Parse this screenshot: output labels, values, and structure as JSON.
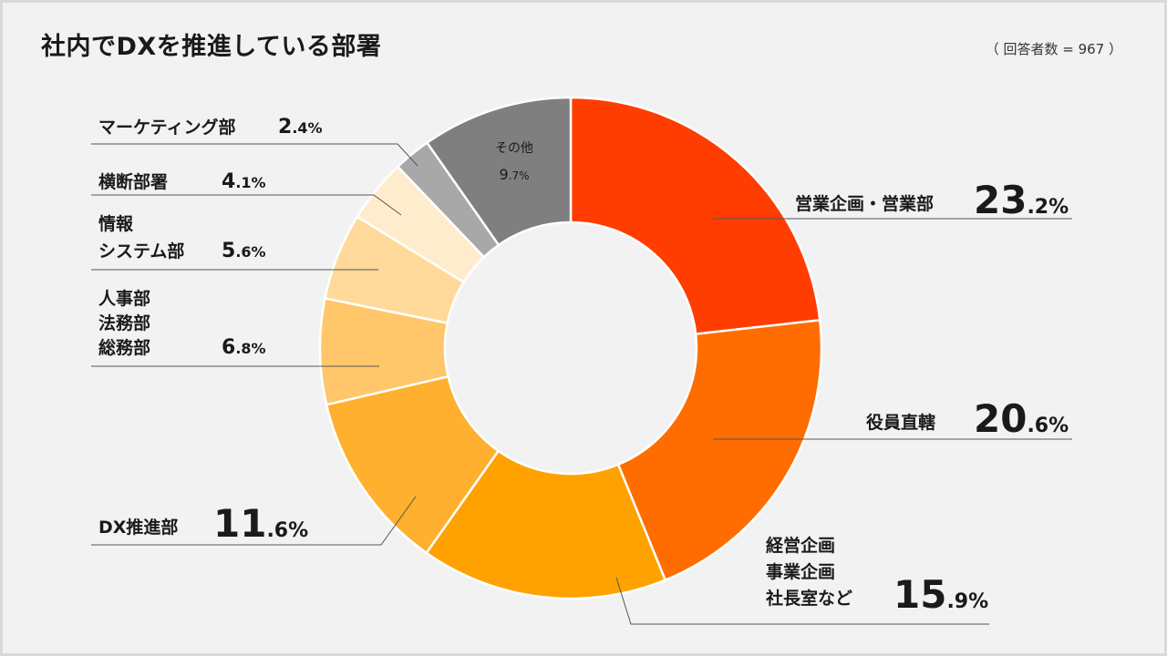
{
  "title": "社内でDXを推進している部署",
  "respondents": "（ 回答者数 = 967 ）",
  "chart_data": {
    "type": "pie",
    "variant": "donut",
    "title": "社内でDXを推進している部署",
    "note": "（ 回答者数 = 967 ）",
    "unit": "%",
    "slices": [
      {
        "name": "営業企画・営業部",
        "lines": [
          "営業企画・営業部"
        ],
        "value": 23.2,
        "int": "23",
        "dec": ".2%",
        "color": "#ff3d00"
      },
      {
        "name": "役員直轄",
        "lines": [
          "役員直轄"
        ],
        "value": 20.6,
        "int": "20",
        "dec": ".6%",
        "color": "#ff6d00"
      },
      {
        "name": "経営企画 事業企画 社長室など",
        "lines": [
          "経営企画",
          "事業企画",
          "社長室など"
        ],
        "value": 15.9,
        "int": "15",
        "dec": ".9%",
        "color": "#ffa200"
      },
      {
        "name": "DX推進部",
        "lines": [
          "DX推進部"
        ],
        "value": 11.6,
        "int": "11",
        "dec": ".6%",
        "color": "#ffb02e"
      },
      {
        "name": "人事部 法務部 総務部",
        "lines": [
          "人事部",
          "法務部",
          "総務部"
        ],
        "value": 6.8,
        "int": "6",
        "dec": ".8%",
        "color": "#ffc76a"
      },
      {
        "name": "情報 システム部",
        "lines": [
          "情報",
          "システム部"
        ],
        "value": 5.6,
        "int": "5",
        "dec": ".6%",
        "color": "#ffd99a"
      },
      {
        "name": "横断部署",
        "lines": [
          "横断部署"
        ],
        "value": 4.1,
        "int": "4",
        "dec": ".1%",
        "color": "#ffeccc"
      },
      {
        "name": "マーケティング部",
        "lines": [
          "マーケティング部"
        ],
        "value": 2.4,
        "int": "2",
        "dec": ".4%",
        "color": "#a8a8a8"
      },
      {
        "name": "その他",
        "lines": [
          "その他"
        ],
        "value": 9.7,
        "int": "9",
        "dec": ".7%",
        "color": "#7f7f7f"
      }
    ]
  }
}
